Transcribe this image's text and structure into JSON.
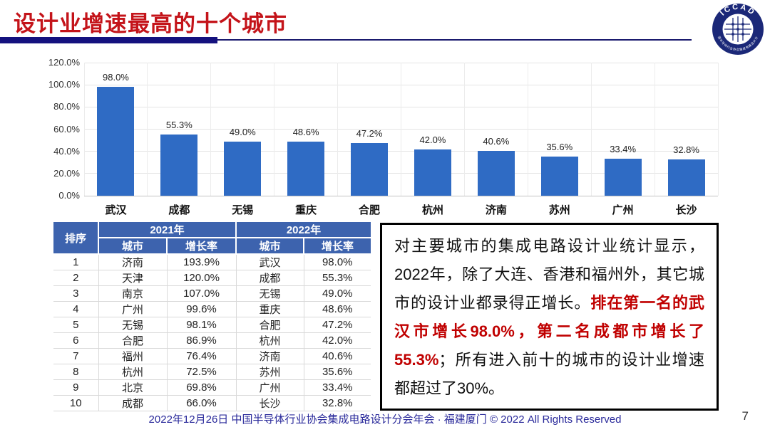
{
  "slide": {
    "title": "设计业增速最高的十个城市",
    "footer": "2022年12月26日 中国半导体行业协会集成电路设计分会年会 · 福建厦门 © 2022 All Rights Reserved",
    "page_number": "7"
  },
  "logo": {
    "text": "ICCAD",
    "ring_text": "中国半导体行业协会集成电路设计分会"
  },
  "colors": {
    "bar_blue": "#2F6BC4",
    "table_header_blue": "#3D63AE",
    "title_red": "#C4141A",
    "accent_red": "#C00000",
    "footer_navy": "#28289A",
    "divider_navy": "#14117E"
  },
  "chart_data": {
    "type": "bar",
    "title": "",
    "xlabel": "",
    "ylabel": "",
    "categories": [
      "武汉",
      "成都",
      "无锡",
      "重庆",
      "合肥",
      "杭州",
      "济南",
      "苏州",
      "广州",
      "长沙"
    ],
    "values": [
      98.0,
      55.3,
      49.0,
      48.6,
      47.2,
      42.0,
      40.6,
      35.6,
      33.4,
      32.8
    ],
    "value_labels": [
      "98.0%",
      "55.3%",
      "49.0%",
      "48.6%",
      "47.2%",
      "42.0%",
      "40.6%",
      "35.6%",
      "33.4%",
      "32.8%"
    ],
    "y_ticks": [
      "0.0%",
      "20.0%",
      "40.0%",
      "60.0%",
      "80.0%",
      "100.0%",
      "120.0%"
    ],
    "ylim": [
      0,
      120
    ],
    "grid": true,
    "legend": false,
    "bar_color": "#2F6BC4"
  },
  "table": {
    "corner_header": "排序",
    "group_headers": [
      "2021年",
      "2022年"
    ],
    "sub_headers": [
      "城市",
      "增长率",
      "城市",
      "增长率"
    ],
    "rows": [
      [
        "1",
        "济南",
        "193.9%",
        "武汉",
        "98.0%"
      ],
      [
        "2",
        "天津",
        "120.0%",
        "成都",
        "55.3%"
      ],
      [
        "3",
        "南京",
        "107.0%",
        "无锡",
        "49.0%"
      ],
      [
        "4",
        "广州",
        "99.6%",
        "重庆",
        "48.6%"
      ],
      [
        "5",
        "无锡",
        "98.1%",
        "合肥",
        "47.2%"
      ],
      [
        "6",
        "合肥",
        "86.9%",
        "杭州",
        "42.0%"
      ],
      [
        "7",
        "福州",
        "76.4%",
        "济南",
        "40.6%"
      ],
      [
        "8",
        "杭州",
        "72.5%",
        "苏州",
        "35.6%"
      ],
      [
        "9",
        "北京",
        "69.8%",
        "广州",
        "33.4%"
      ],
      [
        "10",
        "成都",
        "66.0%",
        "长沙",
        "32.8%"
      ]
    ]
  },
  "commentary": {
    "segments": [
      {
        "style": "normal",
        "text": "对主要城市的集成电路设计业统计显示，2022年，除了大连、香港和福州外，其它城市的设计业都录得正增长。"
      },
      {
        "style": "red-bold",
        "text": "排在第一名的武汉市增长98.0%，第二名成都市增长了55.3%"
      },
      {
        "style": "normal",
        "text": "；所有进入前十的城市的设计业增速都超过了30%。"
      }
    ]
  }
}
